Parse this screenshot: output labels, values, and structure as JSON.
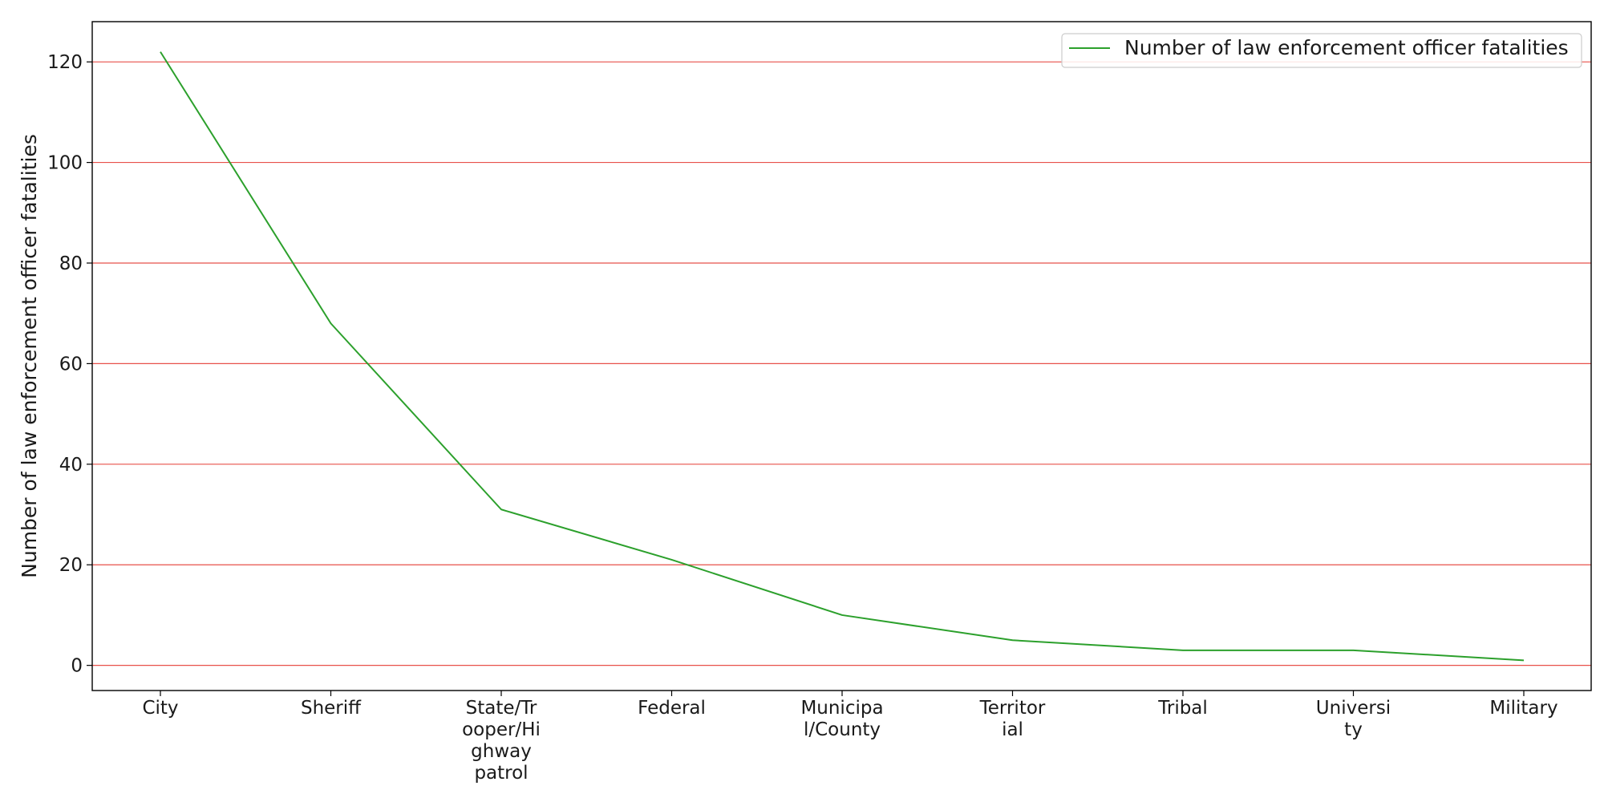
{
  "chart_data": {
    "type": "line",
    "categories": [
      "City",
      "Sheriff",
      "State/Trooper/Highway patrol",
      "Federal",
      "Municipal/County",
      "Territorial",
      "Tribal",
      "University",
      "Military"
    ],
    "category_label_lines": [
      [
        "City"
      ],
      [
        "Sheriff"
      ],
      [
        "State/Tr",
        "ooper/Hi",
        "ghway",
        "patrol"
      ],
      [
        "Federal"
      ],
      [
        "Municipa",
        "l/County"
      ],
      [
        "Territor",
        "ial"
      ],
      [
        "Tribal"
      ],
      [
        "Universi",
        "ty"
      ],
      [
        "Military"
      ]
    ],
    "series": [
      {
        "name": "Number of law enforcement officer fatalities",
        "values": [
          122,
          68,
          31,
          21,
          10,
          5,
          3,
          3,
          1
        ],
        "color": "#2ca02c"
      }
    ],
    "xlabel": "",
    "ylabel": "Number of law enforcement officer fatalities",
    "ylim": [
      -5,
      128
    ],
    "yticks": [
      0,
      20,
      40,
      60,
      80,
      100,
      120
    ],
    "grid": "horizontal",
    "grid_color": "#e8514a",
    "legend_position": "top-right"
  }
}
